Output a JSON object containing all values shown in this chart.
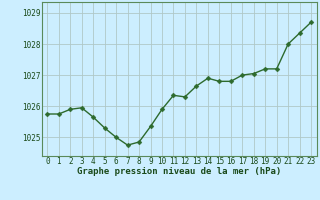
{
  "x": [
    0,
    1,
    2,
    3,
    4,
    5,
    6,
    7,
    8,
    9,
    10,
    11,
    12,
    13,
    14,
    15,
    16,
    17,
    18,
    19,
    20,
    21,
    22,
    23
  ],
  "y": [
    1025.75,
    1025.75,
    1025.9,
    1025.95,
    1025.65,
    1025.3,
    1025.0,
    1024.75,
    1024.85,
    1025.35,
    1025.9,
    1026.35,
    1026.3,
    1026.65,
    1026.9,
    1026.8,
    1026.8,
    1027.0,
    1027.05,
    1027.2,
    1027.2,
    1028.0,
    1028.35,
    1028.7
  ],
  "line_color": "#2d6a2d",
  "marker_color": "#2d6a2d",
  "bg_color": "#cceeff",
  "plot_bg_color": "#cceeff",
  "grid_color": "#b0c8c8",
  "xlabel": "Graphe pression niveau de la mer (hPa)",
  "xlabel_fontsize": 6.5,
  "xlabel_color": "#1a4a1a",
  "yticks": [
    1025,
    1026,
    1027,
    1028,
    1029
  ],
  "ylim": [
    1024.4,
    1029.35
  ],
  "xlim": [
    -0.5,
    23.5
  ],
  "xtick_labels": [
    "0",
    "1",
    "2",
    "3",
    "4",
    "5",
    "6",
    "7",
    "8",
    "9",
    "10",
    "11",
    "12",
    "13",
    "14",
    "15",
    "16",
    "17",
    "18",
    "19",
    "20",
    "21",
    "22",
    "23"
  ],
  "tick_fontsize": 5.5,
  "tick_color": "#1a4a1a",
  "marker_size": 2.5,
  "line_width": 1.0
}
